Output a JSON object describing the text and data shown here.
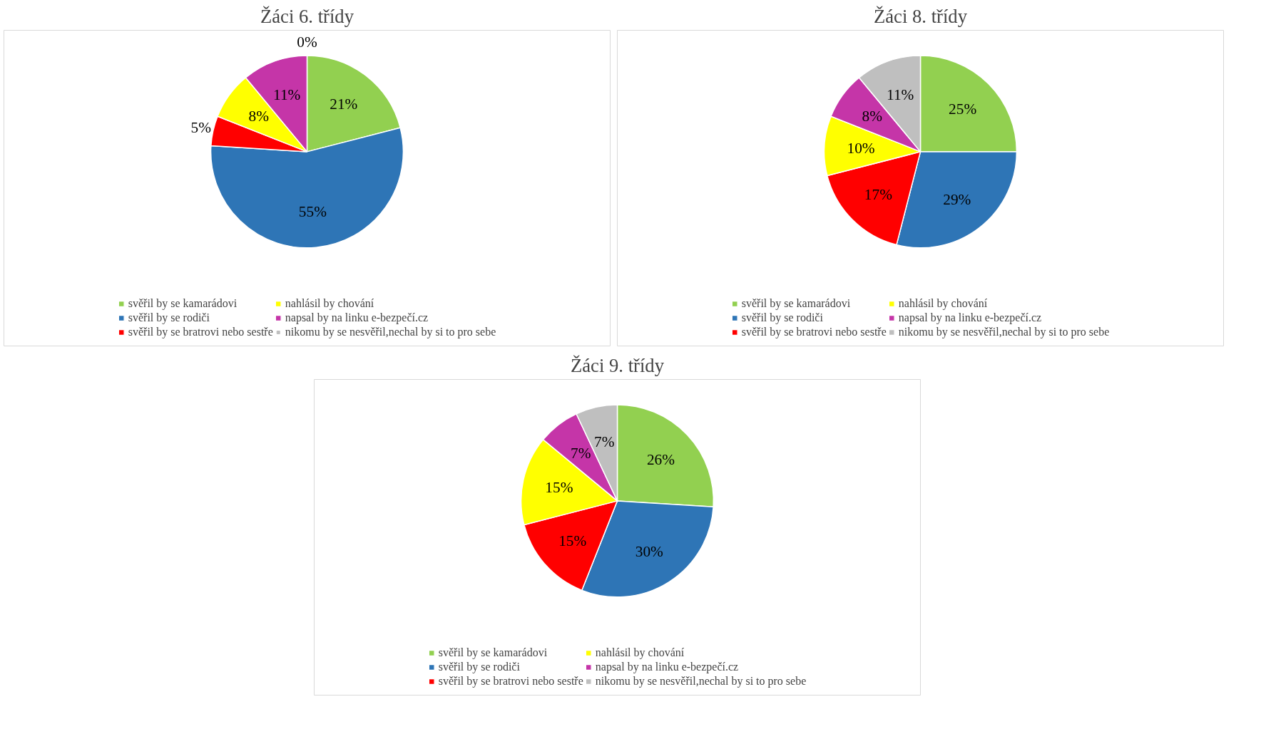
{
  "chart_data": [
    {
      "type": "pie",
      "title": "Žáci 6. třídy",
      "categories": [
        "svěřil by se kamarádovi",
        "svěřil by se rodiči",
        "svěřil by se bratrovi nebo sestře",
        "nahlásil by chování",
        "napsal by na linku e-bezpečí.cz",
        "nikomu by se nesvěřil,nechal by si to pro sebe"
      ],
      "values": [
        21,
        55,
        5,
        8,
        11,
        0
      ],
      "value_labels": [
        "21%",
        "55%",
        "5%",
        "8%",
        "11%",
        "0%"
      ],
      "colors": [
        "#92d050",
        "#2e75b6",
        "#ff0000",
        "#ffff00",
        "#c535a8",
        "#bfbfbf"
      ],
      "legend": "bottom"
    },
    {
      "type": "pie",
      "title": "Žáci 8. třídy",
      "categories": [
        "svěřil by se kamarádovi",
        "svěřil by se rodiči",
        "svěřil by se bratrovi nebo sestře",
        "nahlásil by chování",
        "napsal by na linku e-bezpečí.cz",
        "nikomu by se nesvěřil,nechal by si to pro sebe"
      ],
      "values": [
        25,
        29,
        17,
        10,
        8,
        11
      ],
      "value_labels": [
        "25%",
        "29%",
        "17%",
        "10%",
        "8%",
        "11%"
      ],
      "colors": [
        "#92d050",
        "#2e75b6",
        "#ff0000",
        "#ffff00",
        "#c535a8",
        "#bfbfbf"
      ],
      "legend": "bottom"
    },
    {
      "type": "pie",
      "title": "Žáci 9. třídy",
      "categories": [
        "svěřil by se kamarádovi",
        "svěřil by se rodiči",
        "svěřil by se bratrovi nebo sestře",
        "nahlásil by chování",
        "napsal by na linku e-bezpečí.cz",
        "nikomu by se nesvěřil,nechal by si to pro sebe"
      ],
      "values": [
        26,
        30,
        15,
        15,
        7,
        7
      ],
      "value_labels": [
        "26%",
        "30%",
        "15%",
        "15%",
        "7%",
        "7%"
      ],
      "colors": [
        "#92d050",
        "#2e75b6",
        "#ff0000",
        "#ffff00",
        "#c535a8",
        "#bfbfbf"
      ],
      "legend": "bottom"
    }
  ]
}
